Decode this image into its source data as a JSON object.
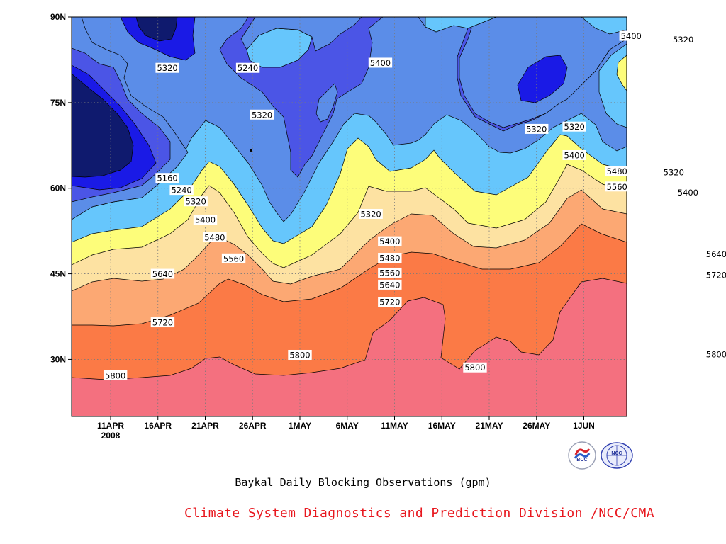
{
  "chart_data": {
    "type": "contour",
    "subtitle": "Baykal Daily Blocking Observations (gpm)",
    "x_ticks": [
      "11APR",
      "16APR",
      "21APR",
      "26APR",
      "1MAY",
      "6MAY",
      "11MAY",
      "16MAY",
      "21MAY",
      "26MAY",
      "1JUN"
    ],
    "x_year_label": "2008",
    "y_ticks": [
      "30N",
      "45N",
      "60N",
      "75N",
      "90N"
    ],
    "y_tick_values": [
      30,
      45,
      60,
      75,
      90
    ],
    "ylim": [
      20,
      90
    ],
    "levels": [
      5160,
      5240,
      5320,
      5400,
      5480,
      5560,
      5640,
      5720,
      5800
    ],
    "fill_colors": [
      "#0f1a6e",
      "#1a1ae6",
      "#4b55e6",
      "#5b8de8",
      "#66c6fc",
      "#fdfd7a",
      "#fde2a2",
      "#fca873",
      "#fb7a46",
      "#f4707f"
    ],
    "grid": "dotted",
    "contour_labels": [
      {
        "text": "5800",
        "day": 0.5,
        "lat": 27.2
      },
      {
        "text": "5800",
        "day": 20.0,
        "lat": 30.8
      },
      {
        "text": "5800",
        "day": 38.5,
        "lat": 28.6
      },
      {
        "text": "5800",
        "day": 64.0,
        "lat": 30.9
      },
      {
        "text": "5720",
        "day": 5.5,
        "lat": 36.5
      },
      {
        "text": "5720",
        "day": 29.5,
        "lat": 40.1
      },
      {
        "text": "5720",
        "day": 64.0,
        "lat": 44.8
      },
      {
        "text": "5640",
        "day": 5.5,
        "lat": 45.0
      },
      {
        "text": "5640",
        "day": 29.5,
        "lat": 43.1
      },
      {
        "text": "5640",
        "day": 64.0,
        "lat": 48.5
      },
      {
        "text": "5560",
        "day": 13.0,
        "lat": 47.7
      },
      {
        "text": "5560",
        "day": 29.5,
        "lat": 45.2
      },
      {
        "text": "5560",
        "day": 53.5,
        "lat": 60.3
      },
      {
        "text": "5560",
        "day": 71.0,
        "lat": 64.8
      },
      {
        "text": "5480",
        "day": 11.0,
        "lat": 51.4
      },
      {
        "text": "5480",
        "day": 29.5,
        "lat": 47.8
      },
      {
        "text": "5480",
        "day": 53.5,
        "lat": 63.0
      },
      {
        "text": "5480",
        "day": 71.0,
        "lat": 67.8
      },
      {
        "text": "5400",
        "day": 10.0,
        "lat": 54.5
      },
      {
        "text": "5400",
        "day": 29.5,
        "lat": 50.7
      },
      {
        "text": "5400",
        "day": 49.0,
        "lat": 65.8
      },
      {
        "text": "5400",
        "day": 61.0,
        "lat": 59.3
      },
      {
        "text": "5400",
        "day": 76.0,
        "lat": 67.3
      },
      {
        "text": "5400",
        "day": 28.5,
        "lat": 82.0
      },
      {
        "text": "5400",
        "day": 55.0,
        "lat": 86.7
      },
      {
        "text": "5320",
        "day": 9.0,
        "lat": 57.7
      },
      {
        "text": "5320",
        "day": 27.5,
        "lat": 55.5
      },
      {
        "text": "5320",
        "day": 59.5,
        "lat": 62.8
      },
      {
        "text": "5320",
        "day": 45.0,
        "lat": 70.4
      },
      {
        "text": "5320",
        "day": 49.0,
        "lat": 70.8
      },
      {
        "text": "5320",
        "day": 16.0,
        "lat": 72.9
      },
      {
        "text": "5320",
        "day": 6.0,
        "lat": 81.1
      },
      {
        "text": "5320",
        "day": 60.5,
        "lat": 86.1
      },
      {
        "text": "5240",
        "day": 7.5,
        "lat": 59.7
      },
      {
        "text": "5240",
        "day": 14.5,
        "lat": 81.1
      },
      {
        "text": "5240",
        "day": 66.5,
        "lat": 85.6
      },
      {
        "text": "5160",
        "day": 6.0,
        "lat": 61.8
      }
    ]
  },
  "credit": {
    "text": "Climate System Diagnostics and Prediction Division /NCC/CMA",
    "color": "#e8181f"
  },
  "logos": [
    {
      "icon": "bcc-logo-icon",
      "text": "BCC"
    },
    {
      "icon": "ncc-logo-icon",
      "text": "NCC"
    }
  ]
}
